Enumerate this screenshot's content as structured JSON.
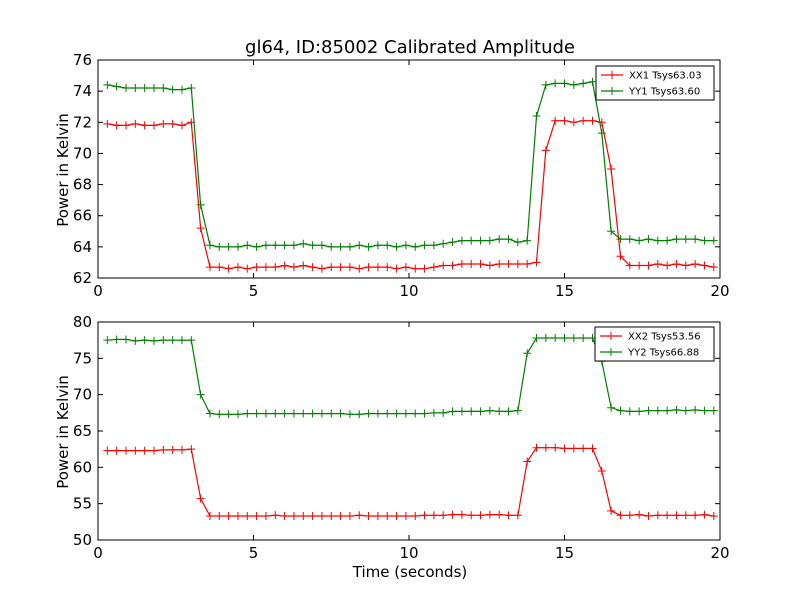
{
  "figure": {
    "title": "gl64, ID:85002 Calibrated Amplitude"
  },
  "colors": {
    "xx": "#ff0000",
    "yy": "#008000",
    "frame": "#000000",
    "background": "#ffffff"
  },
  "chart_data": [
    {
      "type": "line",
      "title": "gl64, ID:85002 Calibrated Amplitude",
      "xlabel": "",
      "ylabel": "Power in Kelvin",
      "xlim": [
        0,
        20
      ],
      "ylim": [
        62,
        76
      ],
      "xticks": [
        0,
        5,
        10,
        15,
        20
      ],
      "yticks": [
        62,
        64,
        66,
        68,
        70,
        72,
        74,
        76
      ],
      "grid": false,
      "legend_position": "top-right",
      "marker": "plus",
      "x": [
        0.3,
        0.6,
        0.9,
        1.2,
        1.5,
        1.8,
        2.1,
        2.4,
        2.7,
        3.0,
        3.3,
        3.6,
        3.9,
        4.2,
        4.5,
        4.8,
        5.1,
        5.4,
        5.7,
        6.0,
        6.3,
        6.6,
        6.9,
        7.2,
        7.5,
        7.8,
        8.1,
        8.4,
        8.7,
        9.0,
        9.3,
        9.6,
        9.9,
        10.2,
        10.5,
        10.8,
        11.1,
        11.4,
        11.7,
        12.0,
        12.3,
        12.6,
        12.9,
        13.2,
        13.5,
        13.8,
        14.1,
        14.4,
        14.7,
        15.0,
        15.3,
        15.6,
        15.9,
        16.2,
        16.5,
        16.8,
        17.1,
        17.4,
        17.7,
        18.0,
        18.3,
        18.6,
        18.9,
        19.2,
        19.5,
        19.8
      ],
      "series": [
        {
          "name": "XX1 Tsys63.03",
          "color": "#ff0000",
          "values": [
            71.9,
            71.8,
            71.8,
            71.9,
            71.8,
            71.8,
            71.9,
            71.9,
            71.8,
            72.0,
            65.2,
            62.7,
            62.7,
            62.6,
            62.7,
            62.6,
            62.7,
            62.7,
            62.7,
            62.8,
            62.7,
            62.8,
            62.7,
            62.6,
            62.7,
            62.7,
            62.7,
            62.6,
            62.7,
            62.7,
            62.7,
            62.6,
            62.7,
            62.6,
            62.6,
            62.7,
            62.8,
            62.8,
            62.9,
            62.9,
            62.9,
            62.8,
            62.9,
            62.9,
            62.9,
            62.9,
            63.0,
            70.2,
            72.1,
            72.1,
            72.0,
            72.1,
            72.1,
            72.0,
            69.0,
            63.4,
            62.8,
            62.8,
            62.8,
            62.9,
            62.8,
            62.9,
            62.8,
            62.9,
            62.8,
            62.7
          ],
          "note_x_start": 0.3
        },
        {
          "name": "YY1 Tsys63.60",
          "color": "#008000",
          "values": [
            74.4,
            74.3,
            74.2,
            74.2,
            74.2,
            74.2,
            74.2,
            74.1,
            74.1,
            74.2,
            66.7,
            64.1,
            64.0,
            64.0,
            64.0,
            64.1,
            64.0,
            64.1,
            64.1,
            64.1,
            64.1,
            64.2,
            64.1,
            64.1,
            64.0,
            64.0,
            64.0,
            64.1,
            64.0,
            64.1,
            64.1,
            64.0,
            64.1,
            64.0,
            64.1,
            64.1,
            64.2,
            64.3,
            64.4,
            64.4,
            64.4,
            64.4,
            64.5,
            64.5,
            64.3,
            64.4,
            72.4,
            74.4,
            74.5,
            74.5,
            74.4,
            74.5,
            74.6,
            71.3,
            65.0,
            64.5,
            64.5,
            64.4,
            64.5,
            64.4,
            64.4,
            64.5,
            64.5,
            64.5,
            64.4,
            64.4
          ]
        }
      ]
    },
    {
      "type": "line",
      "title": "",
      "xlabel": "Time (seconds)",
      "ylabel": "Power in Kelvin",
      "xlim": [
        0,
        20
      ],
      "ylim": [
        50,
        80
      ],
      "xticks": [
        0,
        5,
        10,
        15,
        20
      ],
      "yticks": [
        50,
        55,
        60,
        65,
        70,
        75,
        80
      ],
      "grid": false,
      "legend_position": "top-right",
      "marker": "plus",
      "x": [
        0.3,
        0.6,
        0.9,
        1.2,
        1.5,
        1.8,
        2.1,
        2.4,
        2.7,
        3.0,
        3.3,
        3.6,
        3.9,
        4.2,
        4.5,
        4.8,
        5.1,
        5.4,
        5.7,
        6.0,
        6.3,
        6.6,
        6.9,
        7.2,
        7.5,
        7.8,
        8.1,
        8.4,
        8.7,
        9.0,
        9.3,
        9.6,
        9.9,
        10.2,
        10.5,
        10.8,
        11.1,
        11.4,
        11.7,
        12.0,
        12.3,
        12.6,
        12.9,
        13.2,
        13.5,
        13.8,
        14.1,
        14.4,
        14.7,
        15.0,
        15.3,
        15.6,
        15.9,
        16.2,
        16.5,
        16.8,
        17.1,
        17.4,
        17.7,
        18.0,
        18.3,
        18.6,
        18.9,
        19.2,
        19.5,
        19.8
      ],
      "series": [
        {
          "name": "XX2 Tsys53.56",
          "color": "#ff0000",
          "values": [
            62.3,
            62.3,
            62.3,
            62.3,
            62.3,
            62.3,
            62.4,
            62.4,
            62.4,
            62.5,
            55.7,
            53.3,
            53.3,
            53.3,
            53.3,
            53.3,
            53.3,
            53.3,
            53.4,
            53.3,
            53.3,
            53.3,
            53.3,
            53.3,
            53.3,
            53.3,
            53.3,
            53.4,
            53.3,
            53.3,
            53.3,
            53.3,
            53.3,
            53.3,
            53.4,
            53.4,
            53.4,
            53.5,
            53.5,
            53.4,
            53.4,
            53.5,
            53.5,
            53.4,
            53.4,
            60.8,
            62.7,
            62.7,
            62.7,
            62.6,
            62.6,
            62.6,
            62.6,
            59.5,
            54.0,
            53.4,
            53.4,
            53.5,
            53.3,
            53.4,
            53.4,
            53.4,
            53.4,
            53.4,
            53.5,
            53.3
          ]
        },
        {
          "name": "YY2 Tsys66.88",
          "color": "#008000",
          "values": [
            77.5,
            77.6,
            77.6,
            77.4,
            77.5,
            77.4,
            77.5,
            77.5,
            77.5,
            77.5,
            70.0,
            67.4,
            67.3,
            67.3,
            67.3,
            67.4,
            67.4,
            67.4,
            67.4,
            67.4,
            67.4,
            67.4,
            67.4,
            67.4,
            67.4,
            67.4,
            67.3,
            67.3,
            67.4,
            67.4,
            67.4,
            67.4,
            67.4,
            67.4,
            67.4,
            67.5,
            67.5,
            67.7,
            67.7,
            67.7,
            67.7,
            67.8,
            67.7,
            67.7,
            67.8,
            75.7,
            77.8,
            77.8,
            77.8,
            77.8,
            77.8,
            77.8,
            77.8,
            74.6,
            68.2,
            67.8,
            67.7,
            67.7,
            67.8,
            67.8,
            67.8,
            67.9,
            67.8,
            67.9,
            67.8,
            67.8
          ]
        }
      ]
    }
  ]
}
